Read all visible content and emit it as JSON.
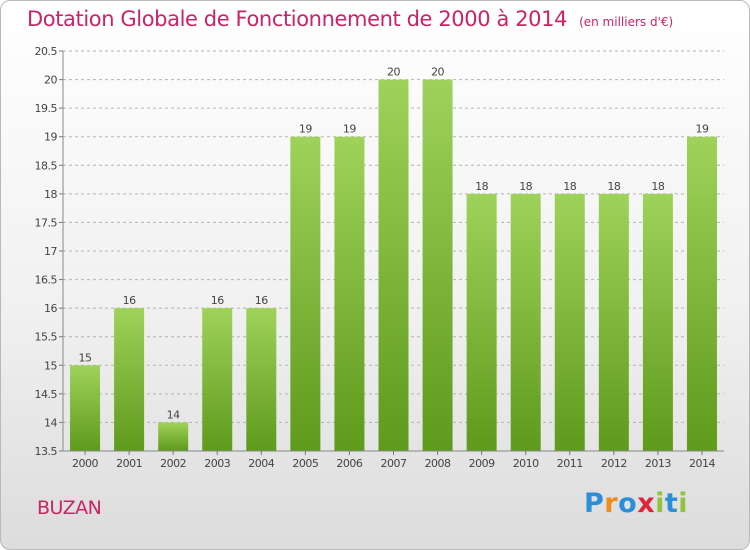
{
  "header": {
    "title": "Dotation Globale de Fonctionnement de 2000 à 2014",
    "subtitle": "(en milliers d'€)"
  },
  "footer": {
    "place": "BUZAN",
    "logo_text": "Proxiti",
    "logo_letters": [
      {
        "char": "P",
        "color": "#2a8fd6"
      },
      {
        "char": "r",
        "color": "#f08c1e"
      },
      {
        "char": "o",
        "color": "#2a8fd6"
      },
      {
        "char": "x",
        "color": "#e0243a"
      },
      {
        "char": "i",
        "color": "#8fc43c"
      },
      {
        "char": "t",
        "color": "#2a8fd6"
      },
      {
        "char": "i",
        "color": "#8fc43c"
      }
    ]
  },
  "colors": {
    "bar_top": "#9fd25a",
    "bar_bottom": "#5e9a1c",
    "accent": "#cc2266",
    "grid": "#b4b4b4",
    "text": "#444444"
  },
  "chart_data": {
    "type": "bar",
    "categories": [
      "2000",
      "2001",
      "2002",
      "2003",
      "2004",
      "2005",
      "2006",
      "2007",
      "2008",
      "2009",
      "2010",
      "2011",
      "2012",
      "2013",
      "2014"
    ],
    "values": [
      15,
      16,
      14,
      16,
      16,
      19,
      19,
      20,
      20,
      18,
      18,
      18,
      18,
      18,
      19
    ],
    "value_labels": [
      "15",
      "16",
      "14",
      "16",
      "16",
      "19",
      "19",
      "20",
      "20",
      "18",
      "18",
      "18",
      "18",
      "18",
      "19"
    ],
    "ylim": [
      13.5,
      20.5
    ],
    "yticks": [
      13.5,
      14,
      14.5,
      15,
      15.5,
      16,
      16.5,
      17,
      17.5,
      18,
      18.5,
      19,
      19.5,
      20,
      20.5
    ],
    "ytick_labels": [
      "13.5",
      "14",
      "14.5",
      "15",
      "15.5",
      "16",
      "16.5",
      "17",
      "17.5",
      "18",
      "18.5",
      "19",
      "19.5",
      "20",
      "20.5"
    ],
    "grid": true,
    "grid_style": "dashed horizontal",
    "legend": false
  }
}
